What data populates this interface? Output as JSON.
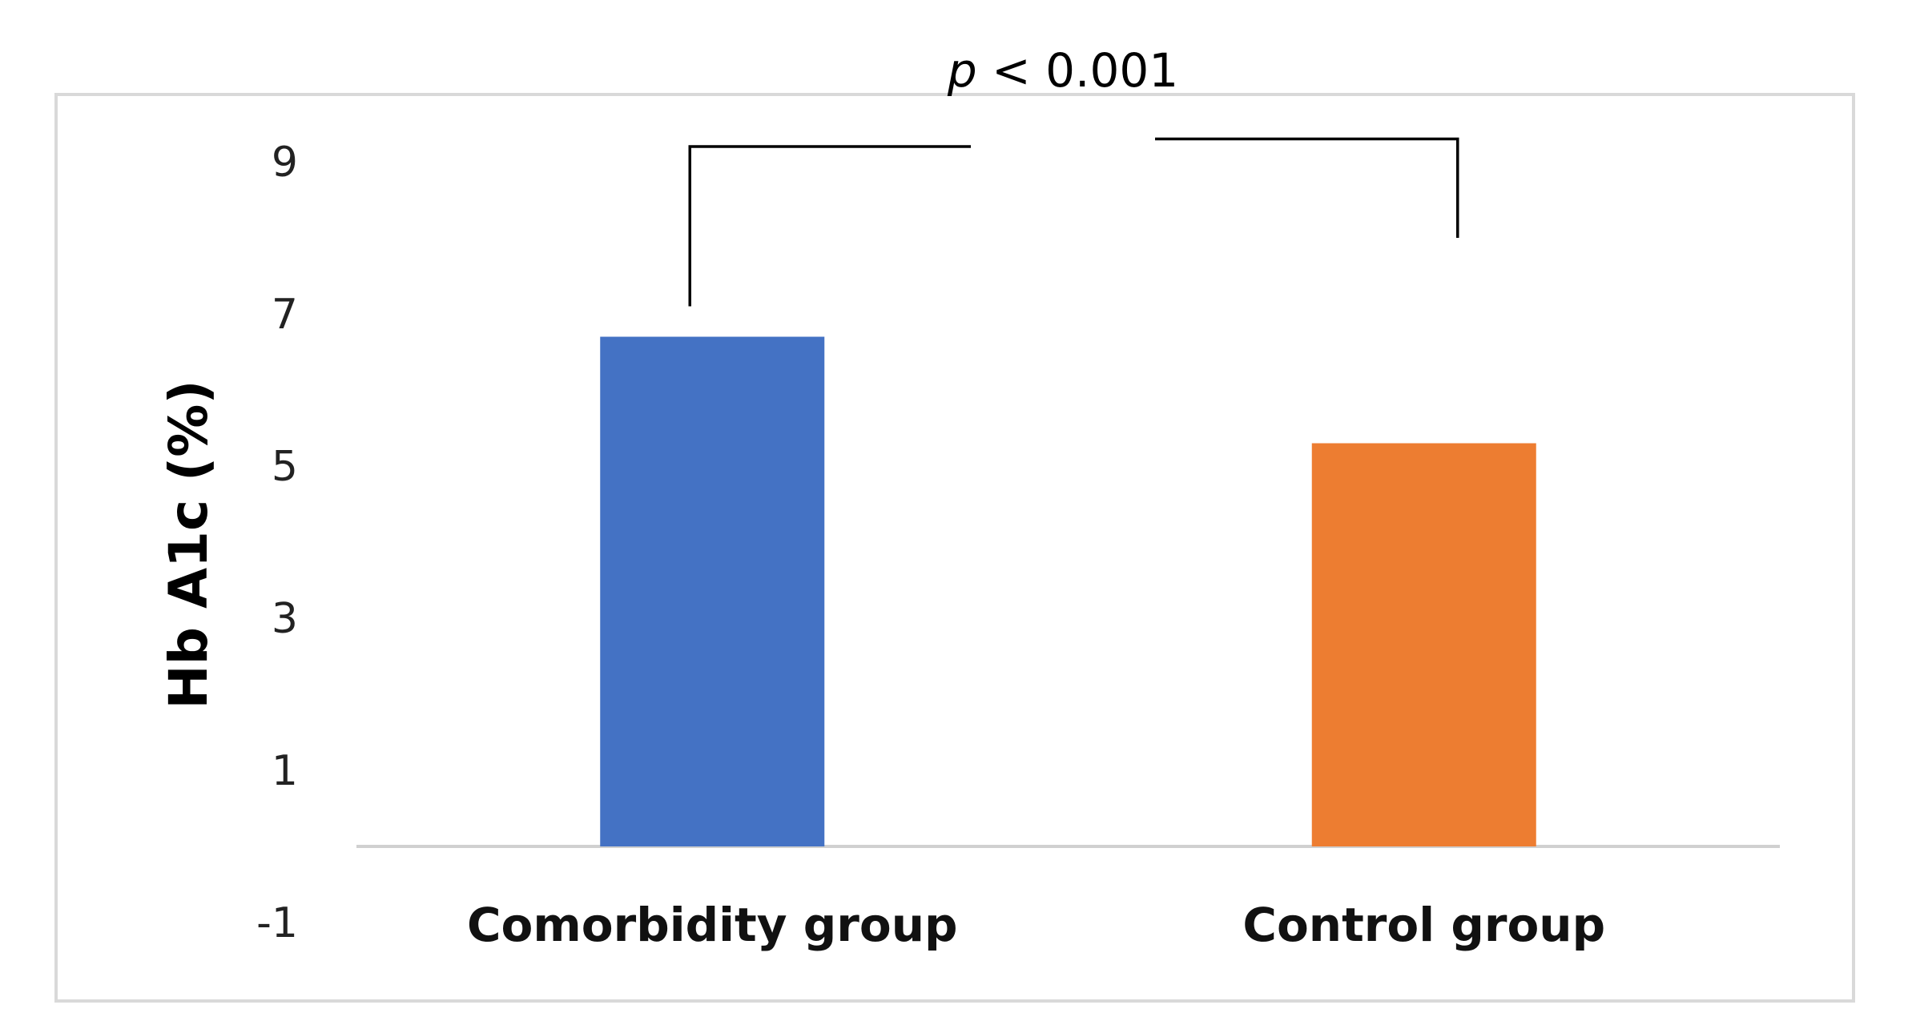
{
  "chart_data": {
    "type": "bar",
    "categories": [
      "Comorbidity group",
      "Control group"
    ],
    "values": [
      6.7,
      5.3
    ],
    "colors": [
      "#4472C4",
      "#ED7D31"
    ],
    "title": "",
    "xlabel": "",
    "ylabel": "Hb A1c (%)",
    "ylim": [
      -1,
      9
    ],
    "yticks": [
      -1,
      1,
      3,
      5,
      7,
      9
    ],
    "grid": false,
    "legend": "none",
    "annotation": {
      "p_symbol": "p",
      "p_rest": " < 0.001",
      "bracket_left_bottom": 7.1,
      "bracket_left_top": 9.2,
      "bracket_right_top": 9.3,
      "bracket_right_bottom": 8.0
    }
  }
}
